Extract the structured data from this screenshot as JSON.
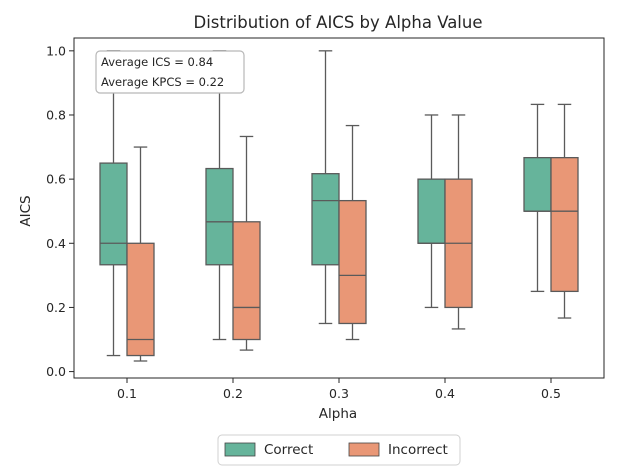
{
  "chart_data": {
    "type": "box",
    "title": "Distribution of AICS by Alpha Value",
    "xlabel": "Alpha",
    "ylabel": "AICS",
    "categories": [
      "0.1",
      "0.2",
      "0.3",
      "0.4",
      "0.5"
    ],
    "ylim": [
      -0.02,
      1.04
    ],
    "yticks": [
      "0.0",
      "0.2",
      "0.4",
      "0.6",
      "0.8",
      "1.0"
    ],
    "grid": false,
    "legend_position": "bottom-center",
    "annotation_lines": [
      "Average ICS = 0.84",
      "Average KPCS = 0.22"
    ],
    "series": [
      {
        "name": "Correct",
        "color": "#66b49b",
        "boxes": [
          {
            "min": 0.05,
            "q1": 0.333,
            "median": 0.4,
            "q3": 0.65,
            "max": 1.0
          },
          {
            "min": 0.1,
            "q1": 0.333,
            "median": 0.467,
            "q3": 0.633,
            "max": 1.0
          },
          {
            "min": 0.15,
            "q1": 0.333,
            "median": 0.533,
            "q3": 0.617,
            "max": 1.0
          },
          {
            "min": 0.2,
            "q1": 0.4,
            "median": 0.4,
            "q3": 0.6,
            "max": 0.8
          },
          {
            "min": 0.25,
            "q1": 0.5,
            "median": 0.5,
            "q3": 0.667,
            "max": 0.833
          }
        ]
      },
      {
        "name": "Incorrect",
        "color": "#e99776",
        "boxes": [
          {
            "min": 0.033,
            "q1": 0.05,
            "median": 0.1,
            "q3": 0.4,
            "max": 0.7
          },
          {
            "min": 0.067,
            "q1": 0.1,
            "median": 0.2,
            "q3": 0.467,
            "max": 0.733
          },
          {
            "min": 0.1,
            "q1": 0.15,
            "median": 0.3,
            "q3": 0.533,
            "max": 0.767
          },
          {
            "min": 0.133,
            "q1": 0.2,
            "median": 0.4,
            "q3": 0.6,
            "max": 0.8
          },
          {
            "min": 0.167,
            "q1": 0.25,
            "median": 0.5,
            "q3": 0.667,
            "max": 0.833
          }
        ]
      }
    ]
  }
}
